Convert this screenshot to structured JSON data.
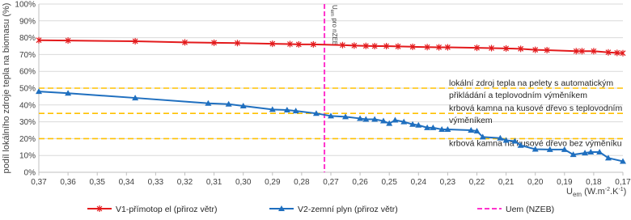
{
  "chart_data": {
    "type": "line",
    "ylabel": "podíl lokálního zdroje tepla na biomasu (%)",
    "xlabel_parts": [
      "U",
      "em",
      " (W.m",
      "-2",
      ".K",
      "-1",
      ")"
    ],
    "xlim": [
      0.37,
      0.17
    ],
    "xticks": [
      {
        "value": 0.37,
        "label": "0,37"
      },
      {
        "value": 0.36,
        "label": "0,36"
      },
      {
        "value": 0.35,
        "label": "0,35"
      },
      {
        "value": 0.34,
        "label": "0,34"
      },
      {
        "value": 0.33,
        "label": "0,33"
      },
      {
        "value": 0.32,
        "label": "0,32"
      },
      {
        "value": 0.31,
        "label": "0,31"
      },
      {
        "value": 0.3,
        "label": "0,30"
      },
      {
        "value": 0.29,
        "label": "0,29"
      },
      {
        "value": 0.28,
        "label": "0,28"
      },
      {
        "value": 0.27,
        "label": "0,27"
      },
      {
        "value": 0.26,
        "label": "0,26"
      },
      {
        "value": 0.25,
        "label": "0,25"
      },
      {
        "value": 0.24,
        "label": "0,24"
      },
      {
        "value": 0.23,
        "label": "0,23"
      },
      {
        "value": 0.22,
        "label": "0,22"
      },
      {
        "value": 0.21,
        "label": "0,21"
      },
      {
        "value": 0.2,
        "label": "0,20"
      },
      {
        "value": 0.19,
        "label": "0,19"
      },
      {
        "value": 0.18,
        "label": "0,18"
      },
      {
        "value": 0.17,
        "label": "0,17"
      }
    ],
    "ylim": [
      0,
      100
    ],
    "yticks": [
      {
        "value": 0,
        "label": "0%"
      },
      {
        "value": 10,
        "label": "10%"
      },
      {
        "value": 20,
        "label": "20%"
      },
      {
        "value": 30,
        "label": "30%"
      },
      {
        "value": 40,
        "label": "40%"
      },
      {
        "value": 50,
        "label": "50%"
      },
      {
        "value": 60,
        "label": "60%"
      },
      {
        "value": 70,
        "label": "70%"
      },
      {
        "value": 80,
        "label": "80%"
      },
      {
        "value": 90,
        "label": "90%"
      },
      {
        "value": 100,
        "label": "100%"
      }
    ],
    "grid": true,
    "legend": "bottom",
    "series": [
      {
        "name": "V1-přímotop el (přiroz větr)",
        "color": "#e31a1c",
        "marker": "star",
        "x": [
          0.37,
          0.36,
          0.337,
          0.32,
          0.31,
          0.302,
          0.29,
          0.284,
          0.281,
          0.276,
          0.266,
          0.262,
          0.258,
          0.255,
          0.251,
          0.247,
          0.242,
          0.237,
          0.233,
          0.23,
          0.22,
          0.215,
          0.21,
          0.205,
          0.2,
          0.196,
          0.186,
          0.184,
          0.18,
          0.175,
          0.172,
          0.17
        ],
        "values": [
          78.5,
          78.3,
          77.9,
          77.2,
          77,
          76.8,
          76.4,
          76.2,
          76,
          76,
          75.6,
          75.3,
          75.1,
          75,
          75,
          74.8,
          74.6,
          74.4,
          74.3,
          74.3,
          74,
          73.8,
          73.6,
          73.4,
          72.8,
          72.6,
          72,
          72,
          72,
          71.3,
          71,
          70.8
        ]
      },
      {
        "name": "V2-zemní plyn (přiroz větr)",
        "color": "#1f6fbf",
        "marker": "triangle",
        "x": [
          0.37,
          0.36,
          0.337,
          0.312,
          0.305,
          0.3,
          0.29,
          0.285,
          0.282,
          0.275,
          0.27,
          0.265,
          0.26,
          0.258,
          0.255,
          0.252,
          0.25,
          0.248,
          0.245,
          0.242,
          0.24,
          0.237,
          0.235,
          0.232,
          0.23,
          0.222,
          0.22,
          0.218,
          0.212,
          0.21,
          0.207,
          0.205,
          0.2,
          0.195,
          0.19,
          0.187,
          0.183,
          0.181,
          0.178,
          0.175,
          0.17
        ],
        "values": [
          48,
          47,
          44.2,
          41,
          40.5,
          39.4,
          37.3,
          37,
          36.5,
          35,
          33.5,
          33,
          32,
          31.5,
          31.5,
          30.5,
          29,
          31,
          30,
          28.5,
          28,
          26.5,
          26.5,
          25.5,
          25.5,
          25,
          24.5,
          21,
          20.3,
          19,
          18.5,
          16,
          13.7,
          13.5,
          13.5,
          10.5,
          11.5,
          12,
          12,
          8.5,
          6.5
        ]
      }
    ],
    "hlines": [
      {
        "value": 50,
        "color": "#ffc000",
        "label_lines": [
          "lokální zdroj tepla na pelety s automatickým",
          "přikládání a teplovodním výměníkem"
        ]
      },
      {
        "value": 35,
        "color": "#ffc000",
        "label_lines": [
          "krbová kamna na kusové dřevo  s teplovodním",
          "výměníkem"
        ]
      },
      {
        "value": 20,
        "color": "#ffc000",
        "label_lines": [
          "krbová kamna na kusové dřevo  bez výměníku"
        ]
      }
    ],
    "vline": {
      "value": 0.2722,
      "color": "#ff33cc",
      "name": "Uem (NZEB)",
      "label_parts": [
        "U",
        "em",
        " pro nZEB"
      ]
    }
  }
}
